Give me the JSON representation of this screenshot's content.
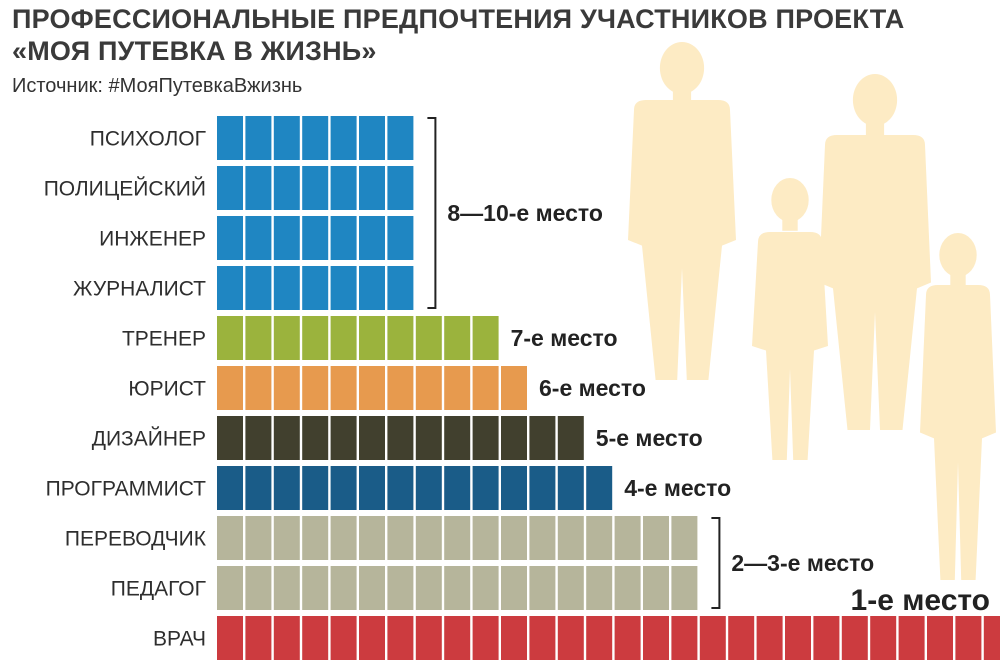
{
  "header": {
    "title_line_1": "ПРОФЕССИОНАЛЬНЫЕ ПРЕДПОЧТЕНИЯ УЧАСТНИКОВ ПРОЕКТА",
    "title_line_2": "«МОЯ ПУТЕВКА В ЖИЗНЬ»",
    "source": "Источник: #МояПутевкаВжизнь"
  },
  "chart_data": {
    "type": "bar",
    "orientation": "horizontal",
    "title": "ПРОФЕССИОНАЛЬНЫЕ ПРЕДПОЧТЕНИЯ УЧАСТНИКОВ ПРОЕКТА «МОЯ ПУТЕВКА В ЖИЗНЬ»",
    "subtitle": "Источник: #МояПутевкаВжизнь",
    "xlabel": "",
    "ylabel": "",
    "grid": false,
    "legend": "none",
    "x_axis_visible": false,
    "categories": [
      "ПСИХОЛОГ",
      "ПОЛИЦЕЙСКИЙ",
      "ИНЖЕНЕР",
      "ЖУРНАЛИСТ",
      "ТРЕНЕР",
      "ЮРИСТ",
      "ДИЗАЙНЕР",
      "ПРОГРАММИСТ",
      "ПЕРЕВОДЧИК",
      "ПЕДАГОГ",
      "ВРАЧ"
    ],
    "values": [
      7,
      7,
      7,
      7,
      10,
      11,
      13,
      14,
      17,
      17,
      30
    ],
    "colors": [
      "#1f86c2",
      "#1f86c2",
      "#1f86c2",
      "#1f86c2",
      "#9bb33d",
      "#e79a4e",
      "#41402e",
      "#1a5c88",
      "#b6b59b",
      "#b6b59b",
      "#cc3b3f"
    ],
    "rank_groups": [
      {
        "label": "8—10-е место",
        "from": 0,
        "to": 3,
        "bracket": true
      },
      {
        "label": "7-е место",
        "from": 4,
        "to": 4,
        "bracket": false
      },
      {
        "label": "6-е место",
        "from": 5,
        "to": 5,
        "bracket": false
      },
      {
        "label": "5-е место",
        "from": 6,
        "to": 6,
        "bracket": false
      },
      {
        "label": "4-е место",
        "from": 7,
        "to": 7,
        "bracket": false
      },
      {
        "label": "2—3-е место",
        "from": 8,
        "to": 9,
        "bracket": true
      },
      {
        "label": "1-е место",
        "from": 10,
        "to": 10,
        "bracket": false,
        "above": true
      }
    ],
    "background_color": "#fdebc4"
  }
}
